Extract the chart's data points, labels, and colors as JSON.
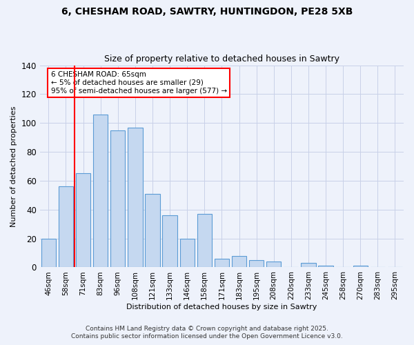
{
  "title": "6, CHESHAM ROAD, SAWTRY, HUNTINGDON, PE28 5XB",
  "subtitle": "Size of property relative to detached houses in Sawtry",
  "xlabel": "Distribution of detached houses by size in Sawtry",
  "ylabel": "Number of detached properties",
  "categories": [
    "46sqm",
    "58sqm",
    "71sqm",
    "83sqm",
    "96sqm",
    "108sqm",
    "121sqm",
    "133sqm",
    "146sqm",
    "158sqm",
    "171sqm",
    "183sqm",
    "195sqm",
    "208sqm",
    "220sqm",
    "233sqm",
    "245sqm",
    "258sqm",
    "270sqm",
    "283sqm",
    "295sqm"
  ],
  "values": [
    20,
    56,
    65,
    106,
    95,
    97,
    51,
    36,
    20,
    37,
    6,
    8,
    5,
    4,
    0,
    3,
    1,
    0,
    1,
    0,
    0
  ],
  "bar_color": "#c5d8f0",
  "bar_edge_color": "#5b9bd5",
  "background_color": "#eef2fb",
  "grid_color": "#c8d0e8",
  "red_line_x": 1.5,
  "ylim": [
    0,
    140
  ],
  "yticks": [
    0,
    20,
    40,
    60,
    80,
    100,
    120,
    140
  ],
  "annotation_title": "6 CHESHAM ROAD: 65sqm",
  "annotation_line1": "← 5% of detached houses are smaller (29)",
  "annotation_line2": "95% of semi-detached houses are larger (577) →",
  "footer1": "Contains HM Land Registry data © Crown copyright and database right 2025.",
  "footer2": "Contains public sector information licensed under the Open Government Licence v3.0.",
  "title_fontsize": 10,
  "subtitle_fontsize": 9,
  "axis_label_fontsize": 8,
  "tick_fontsize": 7.5,
  "annotation_fontsize": 7.5,
  "footer_fontsize": 6.5
}
